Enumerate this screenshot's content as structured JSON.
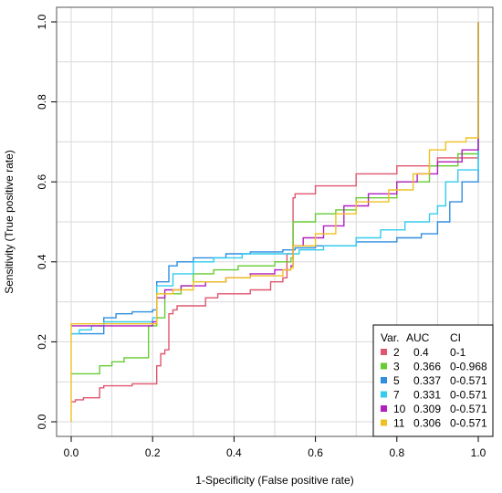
{
  "chart_data": {
    "type": "line",
    "xlabel": "1-Specificity (False positive rate)",
    "ylabel": "Sensitivity (True positive rate)",
    "xlim": [
      0,
      1
    ],
    "ylim": [
      0,
      1
    ],
    "x_ticks": [
      "0.0",
      "0.2",
      "0.4",
      "0.6",
      "0.8",
      "1.0"
    ],
    "y_ticks": [
      "0.0",
      "0.2",
      "0.4",
      "0.6",
      "0.8",
      "1.0"
    ],
    "grid": true,
    "legend_placement": "bottom-right",
    "legend_header": {
      "var": "Var.",
      "auc": "AUC",
      "ci": "CI"
    },
    "series": [
      {
        "name": "2",
        "auc": "0.4",
        "ci": "0-1",
        "color": "#e0566e",
        "points": [
          [
            0,
            0.05
          ],
          [
            0.01,
            0.05
          ],
          [
            0.01,
            0.055
          ],
          [
            0.03,
            0.06
          ],
          [
            0.06,
            0.06
          ],
          [
            0.07,
            0.085
          ],
          [
            0.08,
            0.09
          ],
          [
            0.15,
            0.095
          ],
          [
            0.2,
            0.095
          ],
          [
            0.21,
            0.14
          ],
          [
            0.22,
            0.17
          ],
          [
            0.23,
            0.18
          ],
          [
            0.24,
            0.27
          ],
          [
            0.25,
            0.28
          ],
          [
            0.26,
            0.29
          ],
          [
            0.33,
            0.31
          ],
          [
            0.36,
            0.32
          ],
          [
            0.44,
            0.33
          ],
          [
            0.49,
            0.35
          ],
          [
            0.52,
            0.36
          ],
          [
            0.53,
            0.42
          ],
          [
            0.54,
            0.42
          ],
          [
            0.545,
            0.56
          ],
          [
            0.55,
            0.57
          ],
          [
            0.6,
            0.59
          ],
          [
            0.7,
            0.62
          ],
          [
            0.8,
            0.64
          ],
          [
            0.9,
            0.66
          ],
          [
            1.0,
            0.7
          ],
          [
            1.0,
            1.0
          ]
        ]
      },
      {
        "name": "3",
        "auc": "0.366",
        "ci": "0-0.968",
        "color": "#66cc33",
        "points": [
          [
            0,
            0.12
          ],
          [
            0.05,
            0.12
          ],
          [
            0.07,
            0.14
          ],
          [
            0.1,
            0.15
          ],
          [
            0.13,
            0.16
          ],
          [
            0.18,
            0.16
          ],
          [
            0.19,
            0.24
          ],
          [
            0.21,
            0.26
          ],
          [
            0.23,
            0.32
          ],
          [
            0.27,
            0.34
          ],
          [
            0.3,
            0.37
          ],
          [
            0.35,
            0.38
          ],
          [
            0.41,
            0.39
          ],
          [
            0.5,
            0.4
          ],
          [
            0.54,
            0.41
          ],
          [
            0.545,
            0.5
          ],
          [
            0.6,
            0.52
          ],
          [
            0.65,
            0.53
          ],
          [
            0.7,
            0.56
          ],
          [
            0.8,
            0.6
          ],
          [
            0.88,
            0.64
          ],
          [
            0.95,
            0.67
          ],
          [
            1.0,
            0.7
          ],
          [
            1.0,
            1.0
          ]
        ]
      },
      {
        "name": "5",
        "auc": "0.337",
        "ci": "0-0.571",
        "color": "#2f8ee0",
        "points": [
          [
            0,
            0.22
          ],
          [
            0.08,
            0.26
          ],
          [
            0.11,
            0.27
          ],
          [
            0.15,
            0.275
          ],
          [
            0.2,
            0.28
          ],
          [
            0.21,
            0.35
          ],
          [
            0.24,
            0.39
          ],
          [
            0.26,
            0.4
          ],
          [
            0.3,
            0.41
          ],
          [
            0.38,
            0.42
          ],
          [
            0.44,
            0.425
          ],
          [
            0.52,
            0.43
          ],
          [
            0.55,
            0.435
          ],
          [
            0.6,
            0.44
          ],
          [
            0.7,
            0.45
          ],
          [
            0.8,
            0.46
          ],
          [
            0.86,
            0.47
          ],
          [
            0.9,
            0.5
          ],
          [
            0.93,
            0.55
          ],
          [
            0.96,
            0.6
          ],
          [
            1.0,
            0.62
          ],
          [
            1.0,
            1.0
          ]
        ]
      },
      {
        "name": "7",
        "auc": "0.331",
        "ci": "0-0.571",
        "color": "#33ccee",
        "points": [
          [
            0,
            0.22
          ],
          [
            0.02,
            0.23
          ],
          [
            0.05,
            0.24
          ],
          [
            0.08,
            0.25
          ],
          [
            0.15,
            0.25
          ],
          [
            0.2,
            0.26
          ],
          [
            0.21,
            0.34
          ],
          [
            0.25,
            0.37
          ],
          [
            0.3,
            0.4
          ],
          [
            0.35,
            0.41
          ],
          [
            0.42,
            0.42
          ],
          [
            0.54,
            0.42
          ],
          [
            0.56,
            0.43
          ],
          [
            0.62,
            0.44
          ],
          [
            0.7,
            0.46
          ],
          [
            0.76,
            0.48
          ],
          [
            0.82,
            0.5
          ],
          [
            0.88,
            0.52
          ],
          [
            0.9,
            0.54
          ],
          [
            0.92,
            0.6
          ],
          [
            0.95,
            0.63
          ],
          [
            1.0,
            0.67
          ],
          [
            1.0,
            1.0
          ]
        ]
      },
      {
        "name": "10",
        "auc": "0.309",
        "ci": "0-0.571",
        "color": "#b020c0",
        "points": [
          [
            0,
            0.24
          ],
          [
            0.2,
            0.25
          ],
          [
            0.21,
            0.31
          ],
          [
            0.23,
            0.33
          ],
          [
            0.27,
            0.34
          ],
          [
            0.33,
            0.35
          ],
          [
            0.38,
            0.36
          ],
          [
            0.44,
            0.37
          ],
          [
            0.5,
            0.38
          ],
          [
            0.54,
            0.39
          ],
          [
            0.545,
            0.44
          ],
          [
            0.57,
            0.46
          ],
          [
            0.62,
            0.49
          ],
          [
            0.67,
            0.54
          ],
          [
            0.73,
            0.57
          ],
          [
            0.8,
            0.6
          ],
          [
            0.85,
            0.62
          ],
          [
            0.9,
            0.65
          ],
          [
            0.96,
            0.68
          ],
          [
            1.0,
            0.7
          ],
          [
            1.0,
            1.0
          ]
        ]
      },
      {
        "name": "11",
        "auc": "0.306",
        "ci": "0-0.571",
        "color": "#f0c020",
        "points": [
          [
            0,
            0
          ],
          [
            0,
            0.245
          ],
          [
            0.2,
            0.245
          ],
          [
            0.21,
            0.32
          ],
          [
            0.25,
            0.33
          ],
          [
            0.3,
            0.35
          ],
          [
            0.38,
            0.36
          ],
          [
            0.44,
            0.365
          ],
          [
            0.52,
            0.38
          ],
          [
            0.54,
            0.385
          ],
          [
            0.545,
            0.44
          ],
          [
            0.6,
            0.47
          ],
          [
            0.65,
            0.52
          ],
          [
            0.7,
            0.55
          ],
          [
            0.78,
            0.58
          ],
          [
            0.84,
            0.62
          ],
          [
            0.88,
            0.68
          ],
          [
            0.92,
            0.7
          ],
          [
            0.97,
            0.71
          ],
          [
            1.0,
            0.715
          ],
          [
            1.0,
            1.0
          ]
        ]
      }
    ]
  }
}
